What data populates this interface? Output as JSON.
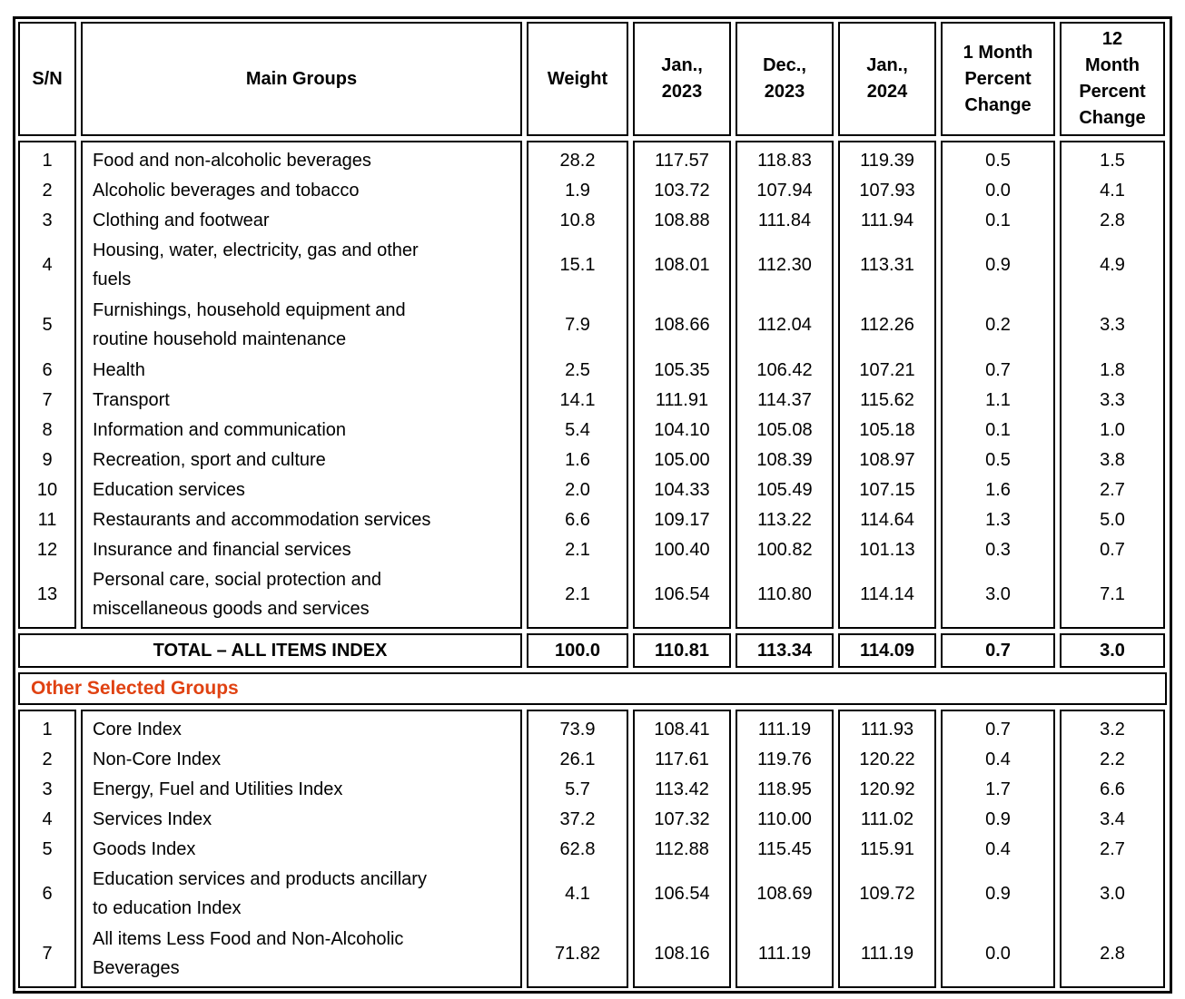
{
  "colors": {
    "border_black": "#000000",
    "section_accent_orange": "#E04212"
  },
  "table": {
    "columns": [
      "S/N",
      "Main Groups",
      "Weight",
      "Jan.,\n2023",
      "Dec.,\n2023",
      "Jan.,\n2024",
      "1 Month\nPercent\nChange",
      "12\nMonth\nPercent\nChange"
    ],
    "main_rows": [
      {
        "sn": "1",
        "name": "Food and non-alcoholic beverages",
        "lines": 1,
        "weight": "28.2",
        "jan_2023": "117.57",
        "dec_2023": "118.83",
        "jan_2024": "119.39",
        "one_month": "0.5",
        "twelve_month": "1.5"
      },
      {
        "sn": "2",
        "name": "Alcoholic beverages and tobacco",
        "lines": 1,
        "weight": "1.9",
        "jan_2023": "103.72",
        "dec_2023": "107.94",
        "jan_2024": "107.93",
        "one_month": "0.0",
        "twelve_month": "4.1"
      },
      {
        "sn": "3",
        "name": "Clothing and footwear",
        "lines": 1,
        "weight": "10.8",
        "jan_2023": "108.88",
        "dec_2023": "111.84",
        "jan_2024": "111.94",
        "one_month": "0.1",
        "twelve_month": "2.8"
      },
      {
        "sn": "4",
        "name": "Housing, water, electricity, gas and other\nfuels",
        "lines": 2,
        "weight": "15.1",
        "jan_2023": "108.01",
        "dec_2023": "112.30",
        "jan_2024": "113.31",
        "one_month": "0.9",
        "twelve_month": "4.9"
      },
      {
        "sn": "5",
        "name": "Furnishings, household equipment and\nroutine household maintenance",
        "lines": 2,
        "weight": "7.9",
        "jan_2023": "108.66",
        "dec_2023": "112.04",
        "jan_2024": "112.26",
        "one_month": "0.2",
        "twelve_month": "3.3"
      },
      {
        "sn": "6",
        "name": "Health",
        "lines": 1,
        "weight": "2.5",
        "jan_2023": "105.35",
        "dec_2023": "106.42",
        "jan_2024": "107.21",
        "one_month": "0.7",
        "twelve_month": "1.8"
      },
      {
        "sn": "7",
        "name": "Transport",
        "lines": 1,
        "weight": "14.1",
        "jan_2023": "111.91",
        "dec_2023": "114.37",
        "jan_2024": "115.62",
        "one_month": "1.1",
        "twelve_month": "3.3"
      },
      {
        "sn": "8",
        "name": "Information and communication",
        "lines": 1,
        "weight": "5.4",
        "jan_2023": "104.10",
        "dec_2023": "105.08",
        "jan_2024": "105.18",
        "one_month": "0.1",
        "twelve_month": "1.0"
      },
      {
        "sn": "9",
        "name": "Recreation, sport and culture",
        "lines": 1,
        "weight": "1.6",
        "jan_2023": "105.00",
        "dec_2023": "108.39",
        "jan_2024": "108.97",
        "one_month": "0.5",
        "twelve_month": "3.8"
      },
      {
        "sn": "10",
        "name": "Education services",
        "lines": 1,
        "weight": "2.0",
        "jan_2023": "104.33",
        "dec_2023": "105.49",
        "jan_2024": "107.15",
        "one_month": "1.6",
        "twelve_month": "2.7"
      },
      {
        "sn": "11",
        "name": "Restaurants and accommodation services",
        "lines": 1,
        "weight": "6.6",
        "jan_2023": "109.17",
        "dec_2023": "113.22",
        "jan_2024": "114.64",
        "one_month": "1.3",
        "twelve_month": "5.0"
      },
      {
        "sn": "12",
        "name": "Insurance and financial services",
        "lines": 1,
        "weight": "2.1",
        "jan_2023": "100.40",
        "dec_2023": "100.82",
        "jan_2024": "101.13",
        "one_month": "0.3",
        "twelve_month": "0.7"
      },
      {
        "sn": "13",
        "name": "Personal care, social protection and\nmiscellaneous goods and services",
        "lines": 2,
        "weight": "2.1",
        "jan_2023": "106.54",
        "dec_2023": "110.80",
        "jan_2024": "114.14",
        "one_month": "3.0",
        "twelve_month": "7.1"
      }
    ],
    "total_row": {
      "label": "TOTAL – ALL ITEMS INDEX",
      "weight": "100.0",
      "jan_2023": "110.81",
      "dec_2023": "113.34",
      "jan_2024": "114.09",
      "one_month": "0.7",
      "twelve_month": "3.0"
    },
    "other_groups_label": "Other Selected Groups",
    "other_rows": [
      {
        "sn": "1",
        "name": "Core Index",
        "lines": 1,
        "weight": "73.9",
        "jan_2023": "108.41",
        "dec_2023": "111.19",
        "jan_2024": "111.93",
        "one_month": "0.7",
        "twelve_month": "3.2"
      },
      {
        "sn": "2",
        "name": "Non-Core Index",
        "lines": 1,
        "weight": "26.1",
        "jan_2023": "117.61",
        "dec_2023": "119.76",
        "jan_2024": "120.22",
        "one_month": "0.4",
        "twelve_month": "2.2"
      },
      {
        "sn": "3",
        "name": "Energy, Fuel and Utilities Index",
        "lines": 1,
        "weight": "5.7",
        "jan_2023": "113.42",
        "dec_2023": "118.95",
        "jan_2024": "120.92",
        "one_month": "1.7",
        "twelve_month": "6.6"
      },
      {
        "sn": "4",
        "name": "Services Index",
        "lines": 1,
        "weight": "37.2",
        "jan_2023": "107.32",
        "dec_2023": "110.00",
        "jan_2024": "111.02",
        "one_month": "0.9",
        "twelve_month": "3.4"
      },
      {
        "sn": "5",
        "name": "Goods Index",
        "lines": 1,
        "weight": "62.8",
        "jan_2023": "112.88",
        "dec_2023": "115.45",
        "jan_2024": "115.91",
        "one_month": "0.4",
        "twelve_month": "2.7"
      },
      {
        "sn": "6",
        "name": "Education services and products ancillary\nto education Index",
        "lines": 2,
        "weight": "4.1",
        "jan_2023": "106.54",
        "dec_2023": "108.69",
        "jan_2024": "109.72",
        "one_month": "0.9",
        "twelve_month": "3.0"
      },
      {
        "sn": "7",
        "name": "All items Less Food and Non-Alcoholic\nBeverages",
        "lines": 2,
        "weight": "71.82",
        "jan_2023": "108.16",
        "dec_2023": "111.19",
        "jan_2024": "111.19",
        "one_month": "0.0",
        "twelve_month": "2.8"
      }
    ]
  }
}
